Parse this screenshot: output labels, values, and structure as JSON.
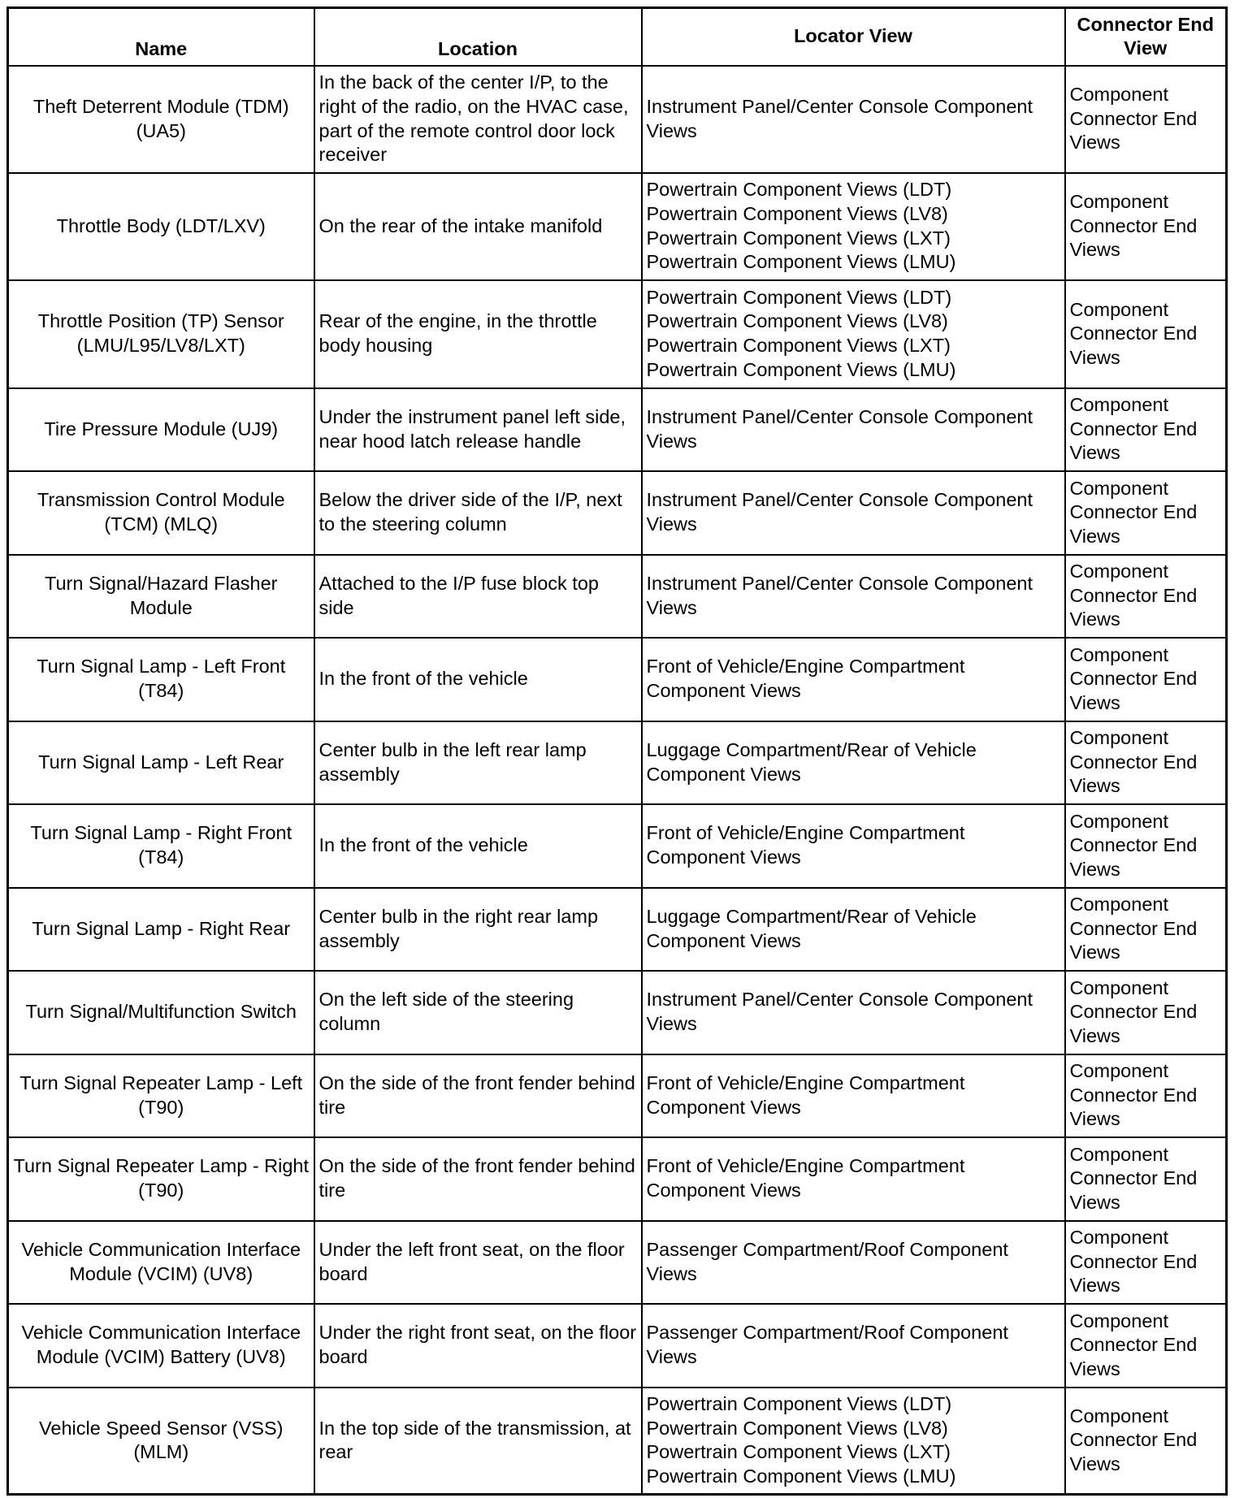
{
  "headers": [
    "Name",
    "Location",
    "Locator View",
    "Connector End View"
  ],
  "rows": [
    {
      "name": "Theft Deterrent Module (TDM) (UA5)",
      "location": "In the back of the center I/P, to the right of the radio, on the HVAC case, part of the remote control door lock receiver",
      "locator": [
        "Instrument Panel/Center Console Component Views"
      ],
      "connector": "Component Connector End Views"
    },
    {
      "name": "Throttle Body (LDT/LXV)",
      "location": "On the rear of the intake manifold",
      "locator": [
        "Powertrain Component Views (LDT)",
        "Powertrain Component Views (LV8)",
        "Powertrain Component Views (LXT)",
        "Powertrain Component Views (LMU)"
      ],
      "connector": "Component Connector End Views"
    },
    {
      "name": "Throttle Position (TP) Sensor (LMU/L95/LV8/LXT)",
      "location": "Rear of the engine, in the throttle body housing",
      "locator": [
        "Powertrain Component Views (LDT)",
        "Powertrain Component Views (LV8)",
        "Powertrain Component Views (LXT)",
        "Powertrain Component Views (LMU)"
      ],
      "connector": "Component Connector End Views"
    },
    {
      "name": "Tire Pressure Module (UJ9)",
      "location": "Under the instrument panel left side, near hood latch release handle",
      "locator": [
        "Instrument Panel/Center Console Component Views"
      ],
      "connector": "Component Connector End Views"
    },
    {
      "name": "Transmission Control Module (TCM) (MLQ)",
      "location": "Below the driver side of the I/P, next to the steering column",
      "locator": [
        "Instrument Panel/Center Console Component Views"
      ],
      "connector": "Component Connector End Views"
    },
    {
      "name": "Turn Signal/Hazard Flasher Module",
      "location": "Attached to the I/P fuse block top side",
      "locator": [
        "Instrument Panel/Center Console Component Views"
      ],
      "connector": "Component Connector End Views"
    },
    {
      "name": "Turn Signal Lamp - Left Front (T84)",
      "location": "In the front of the vehicle",
      "locator": [
        "Front of Vehicle/Engine Compartment Component Views"
      ],
      "connector": "Component Connector End Views"
    },
    {
      "name": "Turn Signal Lamp - Left Rear",
      "location": "Center bulb in the left rear lamp assembly",
      "locator": [
        "Luggage Compartment/Rear of Vehicle Component Views"
      ],
      "connector": "Component Connector End Views"
    },
    {
      "name": "Turn Signal Lamp - Right Front (T84)",
      "location": "In the front of the vehicle",
      "locator": [
        "Front of Vehicle/Engine Compartment Component Views"
      ],
      "connector": "Component Connector End Views"
    },
    {
      "name": "Turn Signal Lamp - Right Rear",
      "location": "Center bulb in the right rear lamp assembly",
      "locator": [
        "Luggage Compartment/Rear of Vehicle Component Views"
      ],
      "connector": "Component Connector End Views"
    },
    {
      "name": "Turn Signal/Multifunction Switch",
      "location": "On the left side of the steering column",
      "locator": [
        "Instrument Panel/Center Console Component Views"
      ],
      "connector": "Component Connector End Views"
    },
    {
      "name": "Turn Signal Repeater Lamp - Left (T90)",
      "location": "On the side of the front fender behind tire",
      "locator": [
        "Front of Vehicle/Engine Compartment Component Views"
      ],
      "connector": "Component Connector End Views"
    },
    {
      "name": "Turn Signal Repeater Lamp - Right (T90)",
      "location": "On the side of the front fender behind tire",
      "locator": [
        "Front of Vehicle/Engine Compartment Component Views"
      ],
      "connector": "Component Connector End Views"
    },
    {
      "name": "Vehicle Communication Interface Module (VCIM) (UV8)",
      "location": "Under the left front seat, on the floor board",
      "locator": [
        "Passenger Compartment/Roof Component Views"
      ],
      "connector": "Component Connector End Views"
    },
    {
      "name": "Vehicle Communication Interface Module (VCIM) Battery (UV8)",
      "location": "Under the right front seat, on the floor board",
      "locator": [
        "Passenger Compartment/Roof Component Views"
      ],
      "connector": "Component Connector End Views"
    },
    {
      "name": "Vehicle Speed Sensor (VSS) (MLM)",
      "location": "In the top side of the transmission, at rear",
      "locator": [
        "Powertrain Component Views (LDT)",
        "Powertrain Component Views (LV8)",
        "Powertrain Component Views (LXT)",
        "Powertrain Component Views (LMU)"
      ],
      "connector": "Component Connector End Views"
    }
  ]
}
